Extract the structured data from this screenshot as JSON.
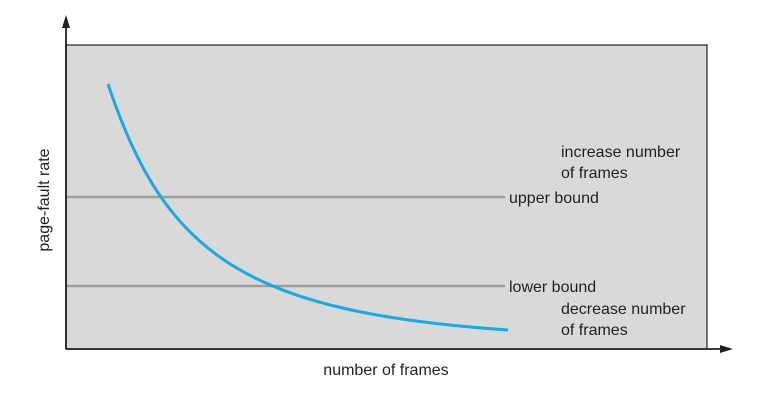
{
  "diagram": {
    "y_axis_label": "page-fault rate",
    "x_axis_label": "number of frames",
    "upper_bound_label": "upper bound",
    "lower_bound_label": "lower bound",
    "increase_label": {
      "line1": "increase number",
      "line2": "of frames"
    },
    "decrease_label": {
      "line1": "decrease number",
      "line2": "of frames"
    }
  },
  "colors": {
    "plot_background": "#d9d9da",
    "curve": "#1ba9e1",
    "bound_lines": "#9d9d9e",
    "axes": "#231f20",
    "text": "#231f20"
  }
}
